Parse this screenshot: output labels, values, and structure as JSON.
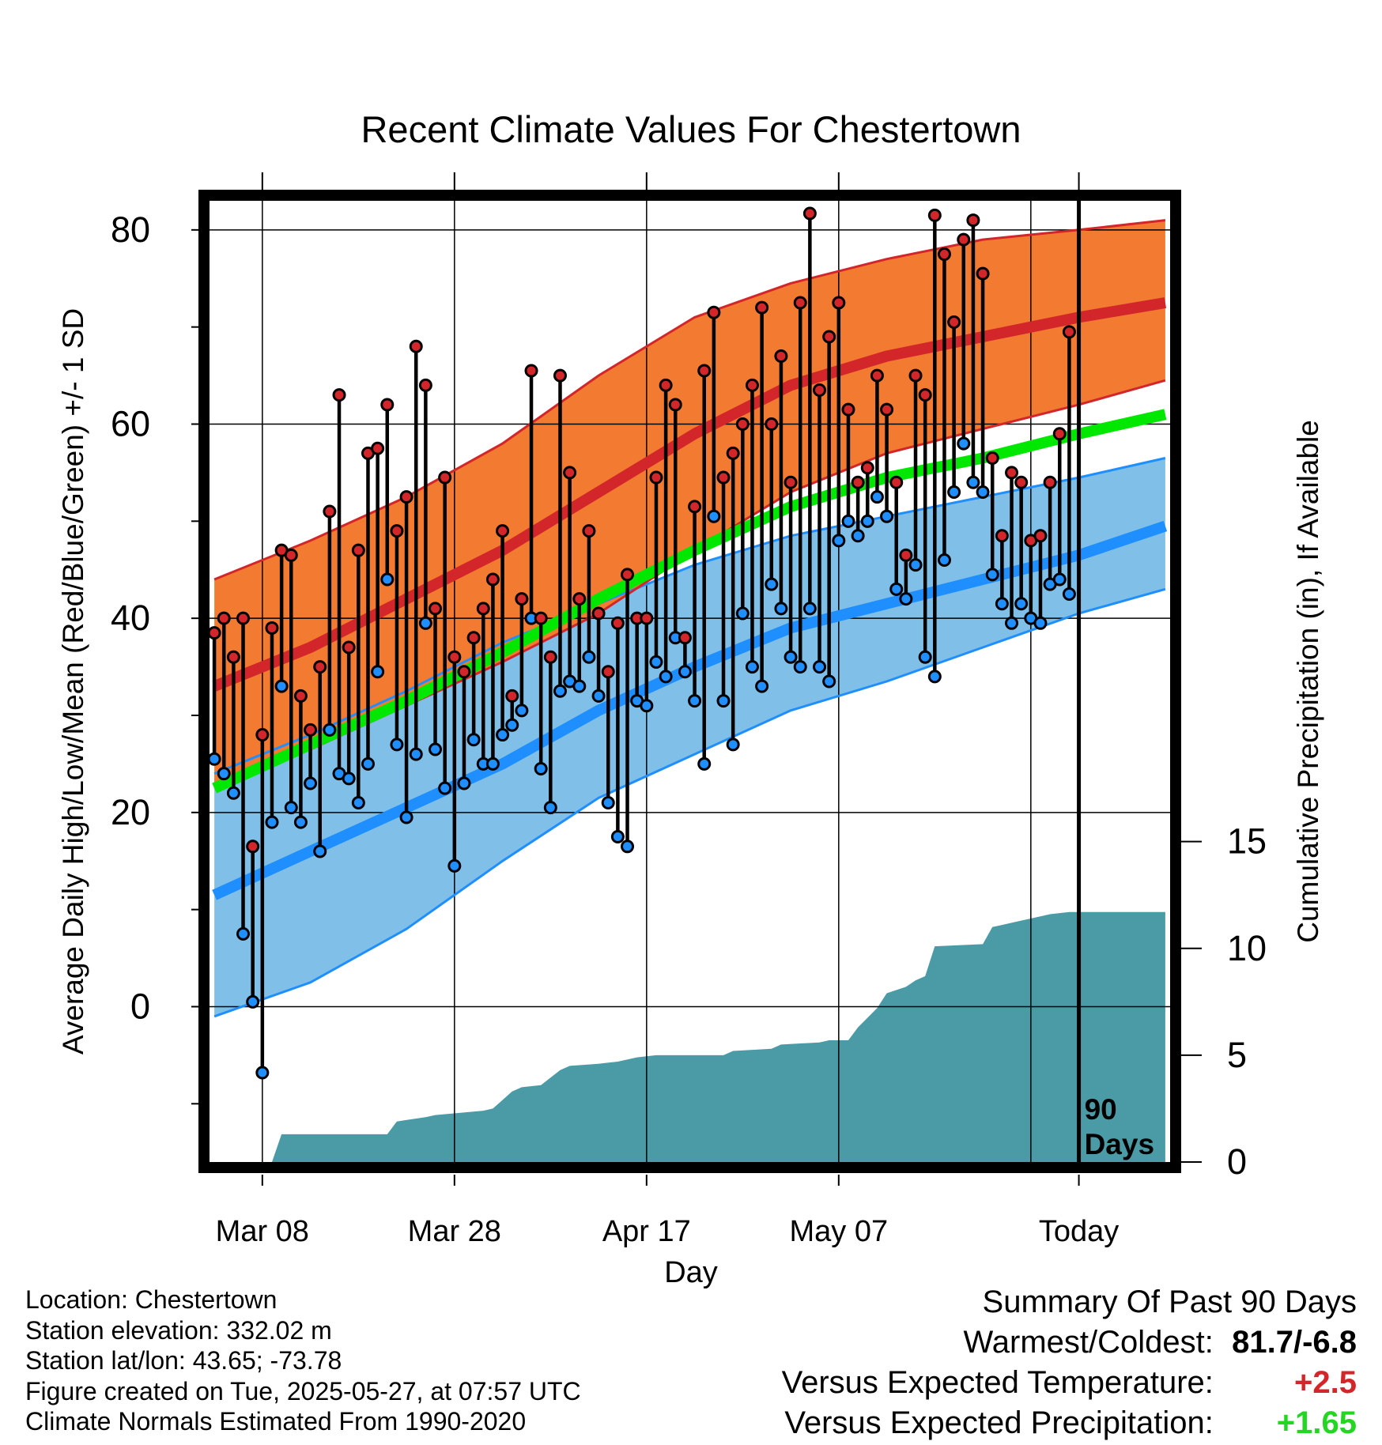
{
  "chart_data": {
    "type": "line",
    "title": "Recent Climate Values For Chestertown",
    "xlabel": "Day",
    "ylabel": "Average Daily High/Low/Mean (Red/Blue/Green) +/- 1 SD",
    "y2label": "Cumulative Precipitation (in), If Available",
    "x_ticks": [
      "Mar 08",
      "Mar 28",
      "Apr 17",
      "May 07",
      "Today"
    ],
    "y_ticks": [
      "0",
      "20",
      "40",
      "60",
      "80"
    ],
    "y2_ticks": [
      "0",
      "5",
      "10",
      "15"
    ],
    "xlim": [
      -0.5,
      99.5
    ],
    "ylim": [
      -16,
      83
    ],
    "y2_range": [
      0,
      45
    ],
    "grid": true,
    "today_index": 90,
    "today_label_line1": "90",
    "today_label_line2": "Days",
    "colors": {
      "high_band": "#f27a31",
      "high_line": "#d3262a",
      "high_edge": "#d3262a",
      "low_band": "#80c0e8",
      "low_line": "#1f8fff",
      "low_edge": "#1f8fff",
      "mean_line": "#00e800",
      "precip": "#4a9ba6",
      "high_marker": "#d3262a",
      "low_marker": "#1f8fff"
    },
    "normals": {
      "x": [
        0,
        10,
        20,
        30,
        40,
        50,
        60,
        70,
        80,
        90,
        99
      ],
      "high_mean": [
        33,
        37,
        42,
        47,
        53,
        59,
        64,
        67,
        69,
        71,
        72.5
      ],
      "high_sd_upper": [
        44,
        48,
        52.5,
        58,
        65,
        71,
        74.5,
        77,
        79,
        80,
        81
      ],
      "high_sd_lower": [
        23,
        26.5,
        31,
        35.5,
        40.5,
        47,
        53,
        57,
        59.5,
        62,
        64.5
      ],
      "low_mean": [
        11.5,
        16,
        20.5,
        25,
        30.5,
        35,
        39,
        41.5,
        44,
        46.5,
        49.5
      ],
      "low_sd_upper": [
        24,
        28,
        32.5,
        37.5,
        41.5,
        45.5,
        48.5,
        50.5,
        52.5,
        54.5,
        56.5
      ],
      "low_sd_lower": [
        -1,
        2.5,
        8,
        15,
        21.5,
        26,
        30.5,
        33.5,
        37,
        40.5,
        43
      ],
      "mean": [
        22.5,
        27,
        31.5,
        36.5,
        42,
        47,
        51.5,
        54.5,
        56.5,
        59,
        61
      ]
    },
    "daily_high": [
      38.5,
      40,
      36,
      40,
      16.5,
      28,
      39,
      47,
      46.5,
      32,
      28.5,
      35,
      51,
      63,
      37,
      47,
      57,
      57.5,
      62,
      49,
      52.5,
      68,
      64,
      41,
      54.5,
      36,
      34.5,
      38,
      41,
      44,
      49,
      32,
      42,
      65.5,
      40,
      36,
      65,
      55,
      42,
      49,
      40.5,
      34.5,
      39.5,
      44.5,
      40,
      40,
      54.5,
      64,
      62,
      38,
      51.5,
      65.5,
      71.5,
      54.5,
      57,
      60,
      64,
      72,
      60,
      67,
      54,
      72.5,
      81.7,
      63.5,
      69,
      72.5,
      61.5,
      54,
      55.5,
      65,
      61.5,
      54,
      46.5,
      65,
      63,
      81.5,
      77.5,
      70.5,
      79,
      81,
      75.5,
      56.5,
      48.5,
      55,
      54,
      48,
      48.5,
      54,
      59,
      69.5
    ],
    "daily_low": [
      25.5,
      24,
      22,
      7.5,
      0.5,
      -6.8,
      19,
      33,
      20.5,
      19,
      23,
      16,
      28.5,
      24,
      23.5,
      21,
      25,
      34.5,
      44,
      27,
      19.5,
      26,
      39.5,
      26.5,
      22.5,
      14.5,
      23,
      27.5,
      25,
      25,
      28,
      29,
      30.5,
      40,
      24.5,
      20.5,
      32.5,
      33.5,
      33,
      36,
      32,
      21,
      17.5,
      16.5,
      31.5,
      31,
      35.5,
      34,
      38,
      34.5,
      31.5,
      25,
      50.5,
      31.5,
      27,
      40.5,
      35,
      33,
      43.5,
      41,
      36,
      35,
      41,
      35,
      33.5,
      48,
      50,
      48.5,
      50,
      52.5,
      50.5,
      43,
      42,
      45.5,
      36,
      34,
      46,
      53,
      58,
      54,
      53,
      44.5,
      41.5,
      39.5,
      41.5,
      40,
      39.5,
      43.5,
      44,
      42.5
    ],
    "precip_cumulative": {
      "x": [
        0,
        6,
        7,
        18,
        19,
        22,
        23,
        28,
        29,
        31,
        32,
        34,
        36,
        37,
        40,
        42,
        44,
        46,
        53,
        54,
        58,
        59,
        63,
        64,
        66,
        67,
        69,
        70,
        72,
        73,
        74,
        75,
        80,
        81,
        82,
        84,
        86,
        87,
        89,
        99
      ],
      "y": [
        0,
        0,
        1.3,
        1.3,
        1.9,
        2.1,
        2.2,
        2.4,
        2.5,
        3.3,
        3.5,
        3.6,
        4.3,
        4.5,
        4.6,
        4.7,
        4.9,
        5,
        5,
        5.2,
        5.3,
        5.5,
        5.6,
        5.7,
        5.7,
        6.3,
        7.2,
        7.9,
        8.2,
        8.5,
        8.7,
        10.1,
        10.2,
        11,
        11.1,
        11.3,
        11.5,
        11.6,
        11.7,
        11.7
      ]
    }
  },
  "location_text": "Location: Chestertown",
  "elevation_text": "Station elevation: 332.02 m",
  "latlon_text": "Station lat/lon: 43.65; -73.78",
  "created_text": "Figure created on Tue, 2025-05-27, at 07:57 UTC",
  "normals_text": "Climate Normals Estimated From 1990-2020",
  "summary": {
    "heading": "Summary Of Past 90 Days",
    "warmest_label": "Warmest/Coldest:",
    "warmest_value": "81.7/-6.8",
    "temp_label": "Versus Expected Temperature:",
    "temp_value": "+2.5",
    "temp_color": "#d3262a",
    "precip_label": "Versus Expected Precipitation:",
    "precip_value": "+1.65",
    "precip_color": "#22d622"
  }
}
